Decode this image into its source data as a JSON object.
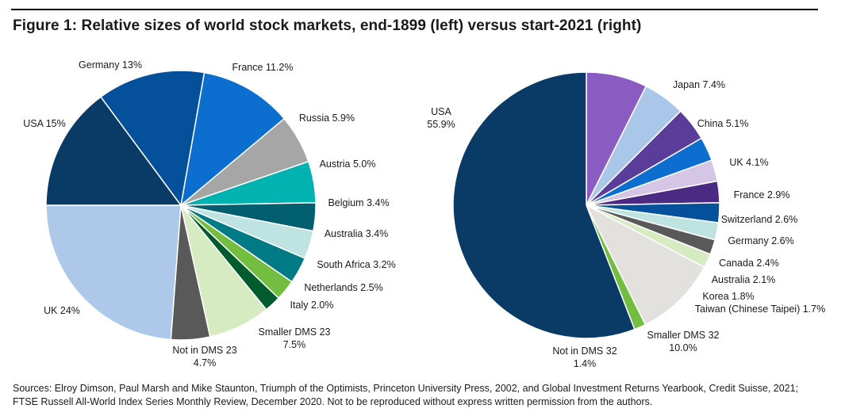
{
  "title": "Figure 1: Relative sizes of world stock markets, end-1899 (left) versus start-2021 (right)",
  "source": "Sources: Elroy Dimson, Paul Marsh and Mike Staunton, Triumph of the Optimists, Princeton University Press, 2002, and Global Investment Returns Yearbook, Credit Suisse, 2021; FTSE Russell All-World Index Series Monthly Review, December 2020. Not to be reproduced without express written permission from the authors.",
  "chart_data": [
    {
      "type": "pie",
      "title": "end-1899",
      "slices": [
        {
          "label": "France 11.2%",
          "value": 11.2,
          "color": "#0c6fd0"
        },
        {
          "label": "Russia 5.9%",
          "value": 5.9,
          "color": "#a6a6a6"
        },
        {
          "label": "Austria 5.0%",
          "value": 5.0,
          "color": "#00b2b0"
        },
        {
          "label": "Belgium 3.4%",
          "value": 3.4,
          "color": "#005e6e"
        },
        {
          "label": "Australia 3.4%",
          "value": 3.4,
          "color": "#bfe3e1"
        },
        {
          "label": "South Africa 3.2%",
          "value": 3.2,
          "color": "#007a84"
        },
        {
          "label": "Netherlands 2.5%",
          "value": 2.5,
          "color": "#73bd40"
        },
        {
          "label": "Italy 2.0%",
          "value": 2.0,
          "color": "#005b2e"
        },
        {
          "label": "Smaller DMS 23\n7.5%",
          "value": 7.5,
          "color": "#d7ebc2"
        },
        {
          "label": "Not in DMS 23\n4.7%",
          "value": 4.7,
          "color": "#595959"
        },
        {
          "label": "UK 24%",
          "value": 24.0,
          "color": "#adc8e8"
        },
        {
          "label": "USA 15%",
          "value": 15.0,
          "color": "#0a3a66"
        },
        {
          "label": "Germany 13%",
          "value": 13.0,
          "color": "#05509a"
        }
      ]
    },
    {
      "type": "pie",
      "title": "start-2021",
      "slices": [
        {
          "label": "Japan 7.4%",
          "value": 7.4,
          "color": "#8a5cc2"
        },
        {
          "label": "China 5.1%",
          "value": 5.1,
          "color": "#aac7e9"
        },
        {
          "label": "UK 4.1%",
          "value": 4.1,
          "color": "#5a3d98"
        },
        {
          "label": "France 2.9%",
          "value": 2.9,
          "color": "#0c6fd0"
        },
        {
          "label": "Switzerland 2.6%",
          "value": 2.6,
          "color": "#d5c6e6"
        },
        {
          "label": "Germany 2.6%",
          "value": 2.6,
          "color": "#4a2a83"
        },
        {
          "label": "Canada 2.4%",
          "value": 2.4,
          "color": "#05509a"
        },
        {
          "label": "Australia 2.1%",
          "value": 2.1,
          "color": "#bfe3e1"
        },
        {
          "label": "Korea 1.8%",
          "value": 1.8,
          "color": "#595959"
        },
        {
          "label": "Taiwan (Chinese Taipei) 1.7%",
          "value": 1.7,
          "color": "#d7ebc2"
        },
        {
          "label": "Smaller DMS 32\n10.0%",
          "value": 10.0,
          "color": "#e3e1dd"
        },
        {
          "label": "Not in DMS 32\n1.4%",
          "value": 1.4,
          "color": "#73bd40"
        },
        {
          "label": "USA\n55.9%",
          "value": 55.9,
          "color": "#0a3a66"
        }
      ]
    }
  ]
}
